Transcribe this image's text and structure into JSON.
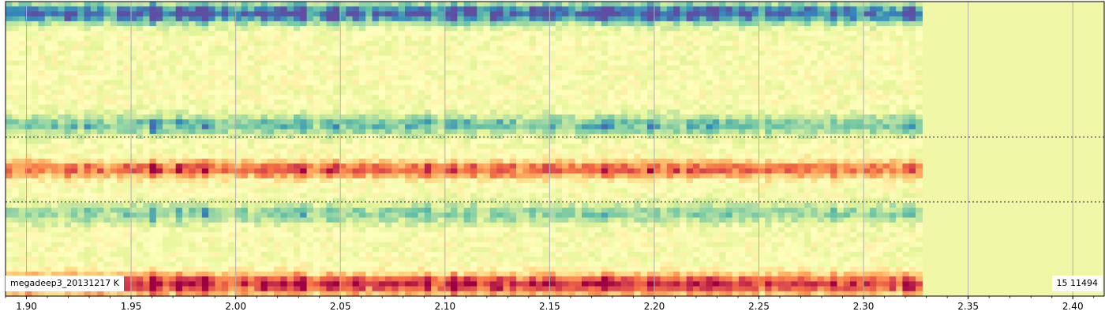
{
  "chart_data": {
    "type": "heatmap",
    "title": "",
    "xlabel": "",
    "ylabel": "",
    "xlim": [
      1.89,
      2.415
    ],
    "data_x_end": 2.328,
    "x_ticks": [
      1.9,
      1.95,
      2.0,
      2.05,
      2.1,
      2.15,
      2.2,
      2.25,
      2.3,
      2.35,
      2.4
    ],
    "x_tick_labels": [
      "1.90",
      "1.95",
      "2.00",
      "2.05",
      "2.10",
      "2.15",
      "2.20",
      "2.25",
      "2.30",
      "2.35",
      "2.40"
    ],
    "minor_tick_step": 0.01,
    "grid": "vertical lines at major ticks",
    "horizontal_markers": [
      {
        "style": "dotted",
        "position_fraction": 0.46
      },
      {
        "style": "dotted",
        "position_fraction": 0.68
      }
    ],
    "colormap": "Spectral_r",
    "colormap_stops": [
      "#5e4fa2",
      "#3288bd",
      "#66c2a5",
      "#abdda4",
      "#e6f598",
      "#ffffbf",
      "#fee08b",
      "#fdae61",
      "#f46d43",
      "#d53e4f",
      "#9e0142"
    ],
    "background_color": "#f0f8a8",
    "bands": [
      {
        "name_hint": "top",
        "center_fraction": 0.04,
        "intensity": -0.95,
        "spread": 0.035
      },
      {
        "name_hint": "upper-mid",
        "center_fraction": 0.42,
        "intensity": -0.55,
        "spread": 0.035
      },
      {
        "name_hint": "middle",
        "center_fraction": 0.57,
        "intensity": 0.75,
        "spread": 0.03
      },
      {
        "name_hint": "lower-mid",
        "center_fraction": 0.72,
        "intensity": -0.45,
        "spread": 0.035
      },
      {
        "name_hint": "bottom",
        "center_fraction": 0.96,
        "intensity": 0.95,
        "spread": 0.035
      }
    ],
    "strong_columns_x": [
      1.96,
      1.975,
      1.985,
      2.03,
      2.045,
      2.09,
      2.105,
      2.11,
      2.155,
      2.175,
      2.2,
      2.23
    ]
  },
  "labels": {
    "dataset": "megadeep3_20131217  K",
    "track": "15  11494"
  }
}
